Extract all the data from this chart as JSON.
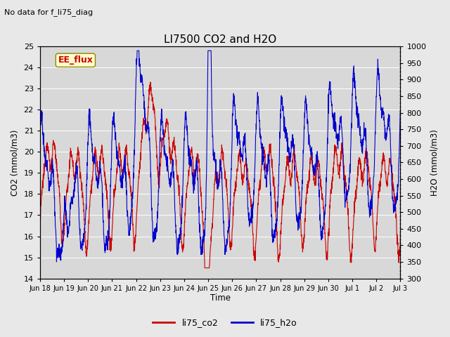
{
  "title": "LI7500 CO2 and H2O",
  "subtitle": "No data for f_li75_diag",
  "xlabel": "Time",
  "ylabel_left": "CO2 (mmol/m3)",
  "ylabel_right": "H2O (mmol/m3)",
  "ylim_left": [
    14.0,
    25.0
  ],
  "ylim_right": [
    300,
    1000
  ],
  "yticks_left": [
    14.0,
    15.0,
    16.0,
    17.0,
    18.0,
    19.0,
    20.0,
    21.0,
    22.0,
    23.0,
    24.0,
    25.0
  ],
  "yticks_right": [
    300,
    350,
    400,
    450,
    500,
    550,
    600,
    650,
    700,
    750,
    800,
    850,
    900,
    950,
    1000
  ],
  "annotation": "EE_flux",
  "color_co2": "#cc0000",
  "color_h2o": "#0000cc",
  "background_color": "#e8e8e8",
  "plot_bg_color": "#d8d8d8",
  "legend_label_co2": "li75_co2",
  "legend_label_h2o": "li75_h2o",
  "xticklabels": [
    "Jun 18",
    "Jun 19",
    "Jun 20",
    "Jun 21",
    "Jun 22",
    "Jun 23",
    "Jun 24",
    "Jun 25",
    "Jun 26",
    "Jun 27",
    "Jun 28",
    "Jun 29",
    "Jun 30",
    "Jul 1",
    "Jul 2",
    "Jul 3"
  ],
  "n_points": 2000
}
